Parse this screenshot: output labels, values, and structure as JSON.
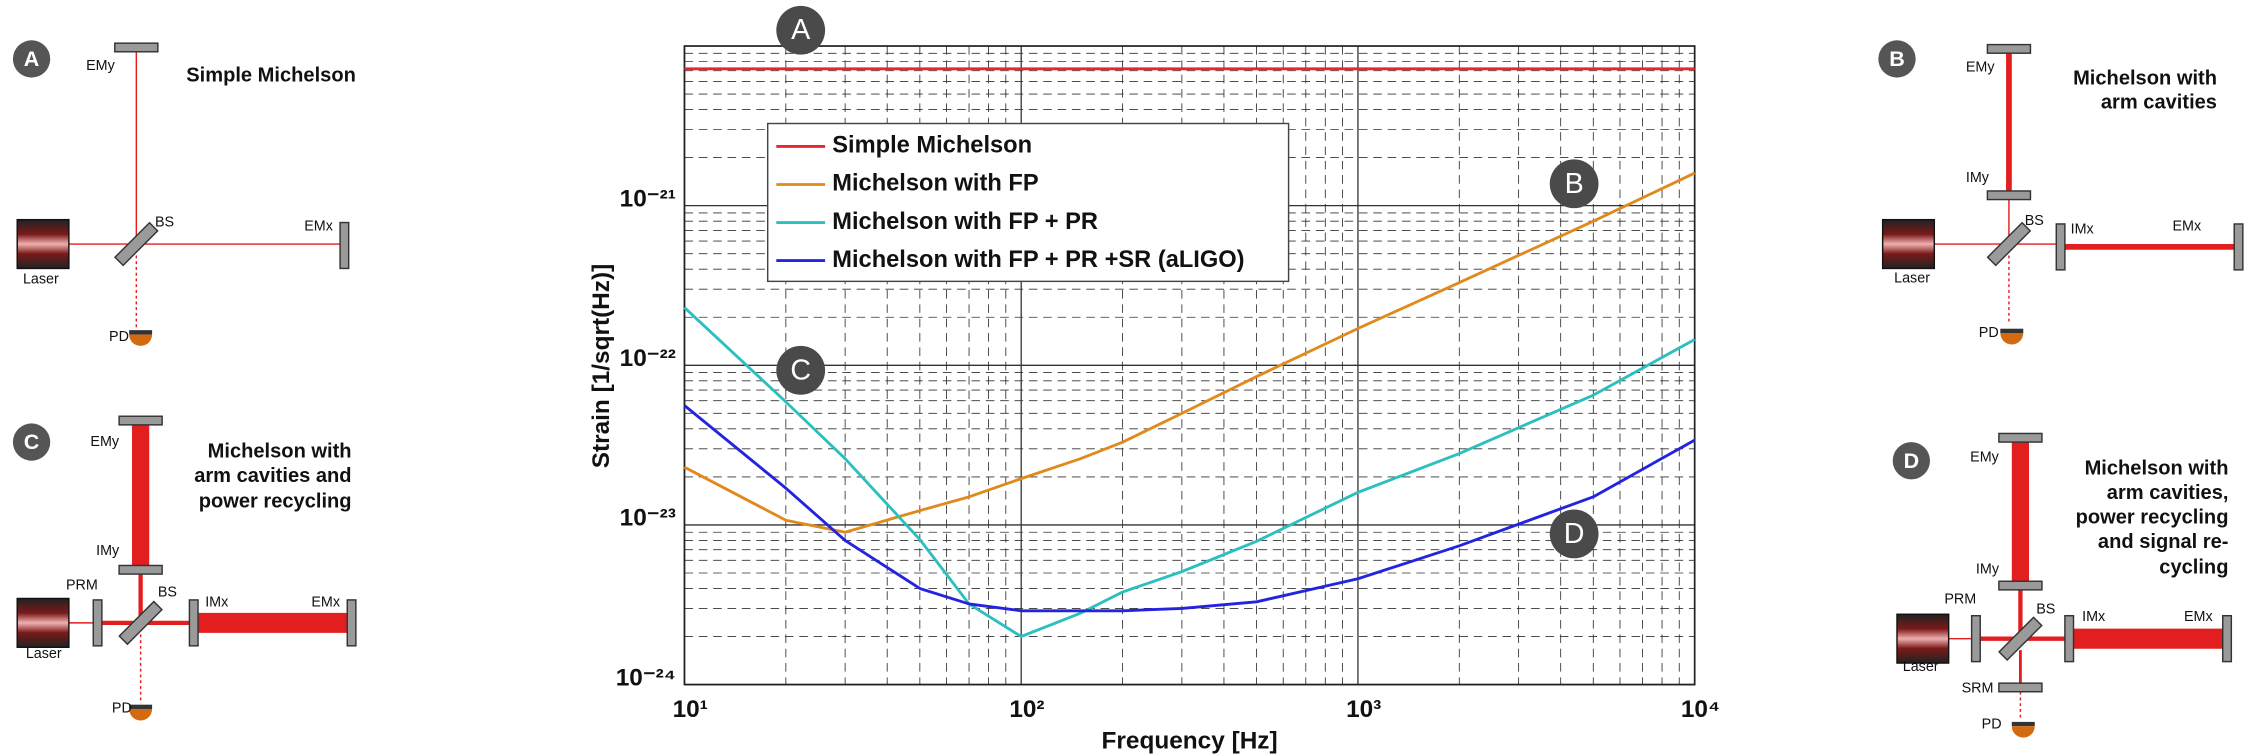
{
  "chart_data": {
    "type": "line",
    "xlabel": "Frequency [Hz]",
    "ylabel": "Strain [1/sqrt(Hz)]",
    "xscale": "log",
    "yscale": "log",
    "grid": true,
    "minor_grid": true,
    "legend": "upper left",
    "xlim": [
      10,
      10000
    ],
    "xticks": [
      {
        "value": 10,
        "label": "10¹"
      },
      {
        "value": 100,
        "label": "10²"
      },
      {
        "value": 1000,
        "label": "10³"
      },
      {
        "value": 10000,
        "label": "10⁴"
      }
    ],
    "ylim": [
      1e-24,
      1e-20
    ],
    "yticks": [
      {
        "value": 1e-24,
        "label": "10⁻²⁴"
      },
      {
        "value": 1e-23,
        "label": "10⁻²³"
      },
      {
        "value": 1e-22,
        "label": "10⁻²²"
      },
      {
        "value": 1e-21,
        "label": "10⁻²¹"
      }
    ],
    "x": [
      10,
      20,
      30,
      50,
      70,
      100,
      150,
      200,
      300,
      500,
      1000,
      2000,
      5000,
      10000
    ],
    "series": [
      {
        "name": "Simple Michelson",
        "color": "#e8262b",
        "values": [
          7.2e-21,
          7.2e-21,
          7.2e-21,
          7.2e-21,
          7.2e-21,
          7.2e-21,
          7.2e-21,
          7.2e-21,
          7.2e-21,
          7.2e-21,
          7.2e-21,
          7.2e-21,
          7.2e-21,
          7.2e-21
        ]
      },
      {
        "name": "Michelson with FP",
        "color": "#e08a1e",
        "values": [
          2.3e-23,
          1.07e-23,
          9e-24,
          1.23e-23,
          1.5e-23,
          1.95e-23,
          2.6e-23,
          3.3e-23,
          5e-23,
          8.5e-23,
          1.7e-22,
          3.3e-22,
          8e-22,
          1.6e-21
        ]
      },
      {
        "name": "Michelson with FP + PR",
        "color": "#2bbfbf",
        "values": [
          2.3e-22,
          5.9e-23,
          2.6e-23,
          8.1e-24,
          3.2e-24,
          2e-24,
          2.8e-24,
          3.8e-24,
          5.1e-24,
          7.9e-24,
          1.6e-23,
          2.8e-23,
          6.5e-23,
          1.45e-22
        ]
      },
      {
        "name": "Michelson with FP + PR +SR (aLIGO)",
        "color": "#2323e0",
        "values": [
          5.6e-23,
          1.7e-23,
          8e-24,
          4e-24,
          3.2e-24,
          2.9e-24,
          2.9e-24,
          2.9e-24,
          3e-24,
          3.3e-24,
          4.6e-24,
          7.4e-24,
          1.5e-23,
          3.4e-23
        ]
      }
    ],
    "annotations": [
      "A",
      "B",
      "C",
      "D"
    ]
  },
  "panels": [
    {
      "letter": "A",
      "title": [
        "Simple Michelson"
      ],
      "parts": [
        "EMy",
        "BS",
        "EMx",
        "Laser",
        "PD"
      ]
    },
    {
      "letter": "B",
      "title": [
        "Michelson with",
        "arm cavities"
      ],
      "parts": [
        "EMy",
        "IMy",
        "BS",
        "IMx",
        "EMx",
        "Laser",
        "PD"
      ]
    },
    {
      "letter": "C",
      "title": [
        "Michelson with",
        "arm cavities and",
        "power recycling"
      ],
      "parts": [
        "EMy",
        "IMy",
        "PRM",
        "BS",
        "IMx",
        "EMx",
        "Laser",
        "PD"
      ]
    },
    {
      "letter": "D",
      "title": [
        "Michelson with",
        "arm cavities,",
        "power recycling",
        "and signal re-",
        "cycling"
      ],
      "parts": [
        "EMy",
        "IMy",
        "PRM",
        "BS",
        "IMx",
        "EMx",
        "Laser",
        "SRM",
        "PD"
      ]
    }
  ]
}
